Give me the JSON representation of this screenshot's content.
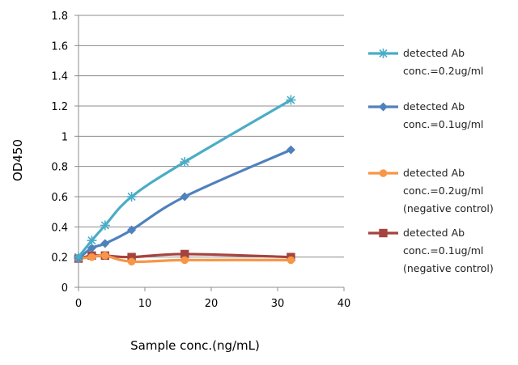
{
  "chart_data": {
    "type": "line",
    "title": "",
    "xlabel": "Sample conc.(ng/mL)",
    "ylabel": "OD450",
    "xlim": [
      0,
      40
    ],
    "ylim": [
      0,
      1.8
    ],
    "x_ticks": [
      0,
      10,
      20,
      30,
      40
    ],
    "y_ticks": [
      0,
      0.2,
      0.4,
      0.6,
      0.8,
      1,
      1.2,
      1.4,
      1.6,
      1.8
    ],
    "x_tick_labels": [
      "0",
      "10",
      "20",
      "30",
      "40"
    ],
    "y_tick_labels": [
      "0",
      "0.2",
      "0.4",
      "0.6",
      "0.8",
      "1",
      "1.2",
      "1.4",
      "1.6",
      "1.8"
    ],
    "grid": "horizontal",
    "legend_position": "right",
    "series": [
      {
        "name": "detected Ab conc.=0.2ug/ml",
        "legend_lines": [
          "detected Ab",
          "conc.=0.2ug/ml"
        ],
        "color": "#4bacc6",
        "marker": "asterisk",
        "x": [
          0,
          2,
          4,
          8,
          16,
          32
        ],
        "y": [
          0.2,
          0.31,
          0.41,
          0.6,
          0.83,
          1.24
        ]
      },
      {
        "name": "detected Ab conc.=0.1ug/ml",
        "legend_lines": [
          "detected Ab",
          "conc.=0.1ug/ml"
        ],
        "color": "#4f81bd",
        "marker": "diamond",
        "x": [
          0,
          2,
          4,
          8,
          16,
          32
        ],
        "y": [
          0.19,
          0.26,
          0.29,
          0.38,
          0.6,
          0.91
        ]
      },
      {
        "name": "detected Ab conc.=0.2ug/ml (negative control)",
        "legend_lines": [
          "detected Ab",
          "conc.=0.2ug/ml",
          "(negative control)"
        ],
        "color": "#f79646",
        "marker": "circle",
        "x": [
          0,
          2,
          4,
          8,
          16,
          32
        ],
        "y": [
          0.19,
          0.2,
          0.21,
          0.17,
          0.18,
          0.18
        ]
      },
      {
        "name": "detected Ab conc.=0.1ug/ml (negative control)",
        "legend_lines": [
          "detected Ab",
          "conc.=0.1ug/ml",
          "(negative control)"
        ],
        "color": "#a5433f",
        "marker": "square",
        "x": [
          0,
          2,
          4,
          8,
          16,
          32
        ],
        "y": [
          0.19,
          0.21,
          0.21,
          0.2,
          0.22,
          0.2
        ]
      }
    ]
  }
}
